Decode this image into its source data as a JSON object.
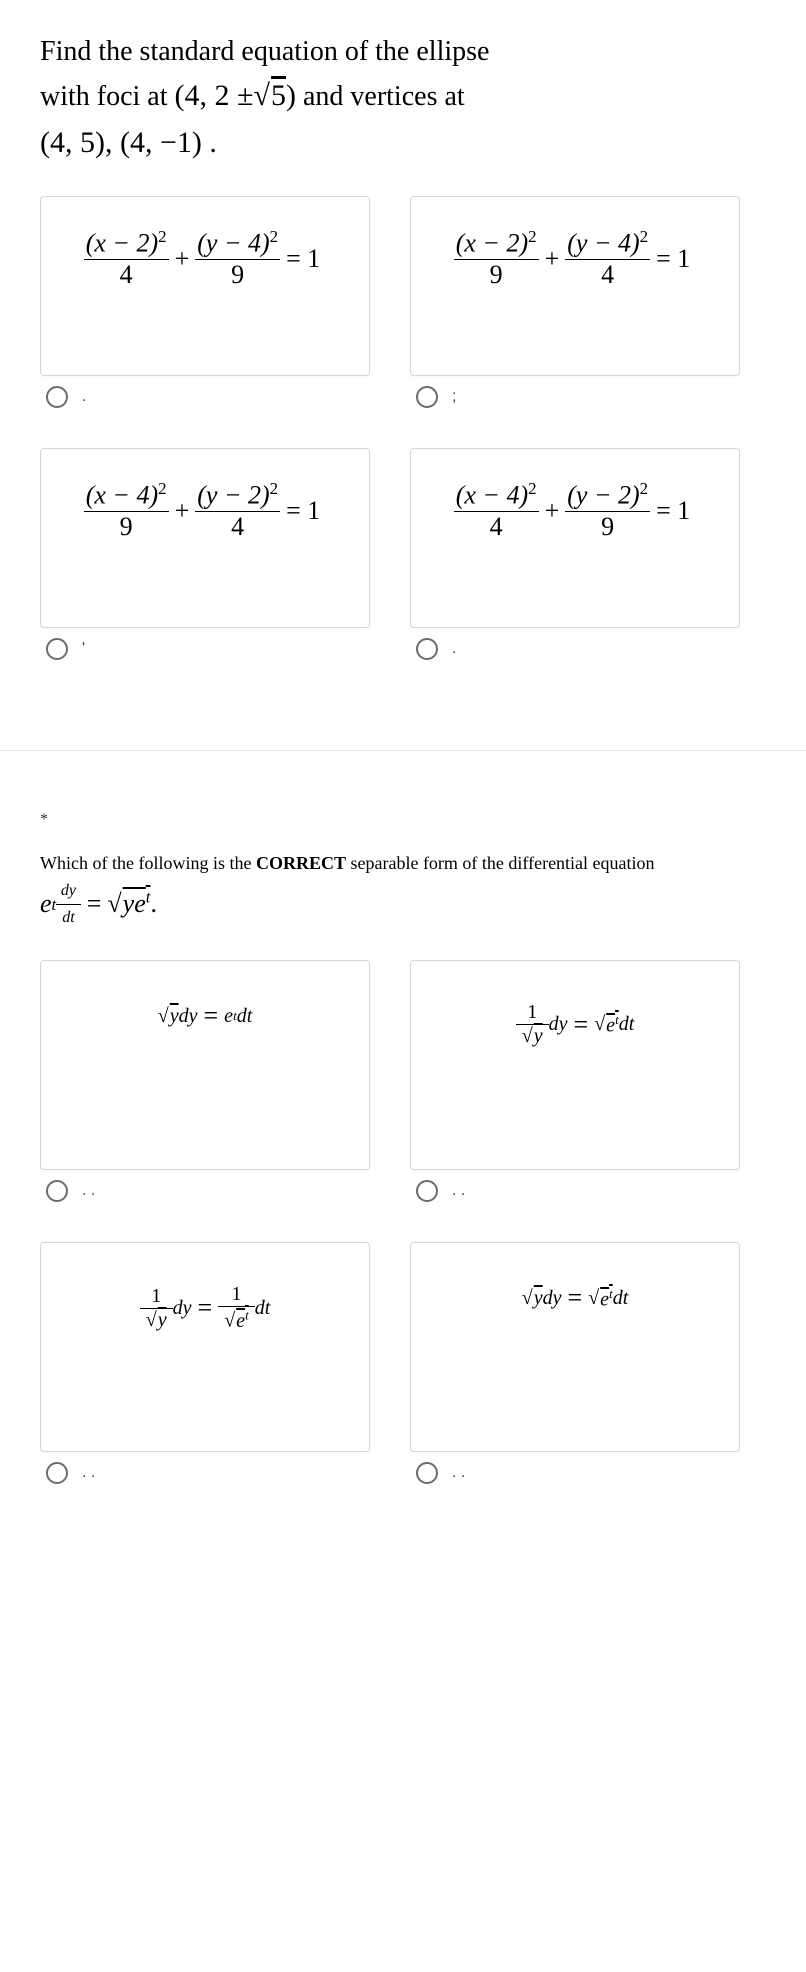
{
  "q1": {
    "question_parts": {
      "line1_pre": "Find the standard equation of the ellipse",
      "line2_pre": "with foci at ",
      "foci_inner": "4, 2 ± ",
      "sqrt_val": "5",
      "line2_post": " and vertices at",
      "vertices": "(4, 5), (4, −1) ."
    },
    "opt_a": {
      "num1": "(x − 2)",
      "den1": "4",
      "num2": "(y − 4)",
      "den2": "9",
      "rhs": "= 1",
      "label": "."
    },
    "opt_b": {
      "num1": "(x − 2)",
      "den1": "9",
      "num2": "(y − 4)",
      "den2": "4",
      "rhs": "= 1",
      "label": ";"
    },
    "opt_c": {
      "num1": "(x − 4)",
      "den1": "9",
      "num2": "(y − 2)",
      "den2": "4",
      "rhs": "= 1",
      "label": "'"
    },
    "opt_d": {
      "num1": "(x − 4)",
      "den1": "4",
      "num2": "(y − 2)",
      "den2": "9",
      "rhs": "= 1",
      "label": "."
    }
  },
  "required_mark": "*",
  "q2": {
    "question_pre": "Which of the following is the ",
    "question_bold": "CORRECT",
    "question_post": " separable form of the differential equation",
    "lhs_sup": "t",
    "lhs_num": "dy",
    "lhs_den": "dt",
    "rhs_inner": "ye",
    "rhs_sup": "t",
    "period": " .",
    "opt_a": {
      "lhs_sqrt": "y",
      "lhs_post": "dy",
      "rhs_pre": "e",
      "rhs_sup": "t",
      "rhs_post": "dt",
      "label": ". ."
    },
    "opt_b": {
      "lhs_den_sqrt": "y",
      "lhs_post": "dy",
      "rhs_sqrt_pre": "e",
      "rhs_sup": "t",
      "rhs_post": " dt",
      "label": ". ."
    },
    "opt_c": {
      "lhs_den_sqrt": "y",
      "lhs_post": "dy",
      "rhs_den_sqrt_pre": "e",
      "rhs_den_sup": "t",
      "rhs_post": "dt",
      "label": ". ."
    },
    "opt_d": {
      "lhs_sqrt": "y",
      "lhs_post": " dy",
      "rhs_sqrt_pre": "e",
      "rhs_sup": "t",
      "rhs_post": " dt",
      "label": ". ."
    }
  },
  "style": {
    "exp": "2",
    "plus": "+",
    "one_num": "1",
    "eq": "="
  }
}
